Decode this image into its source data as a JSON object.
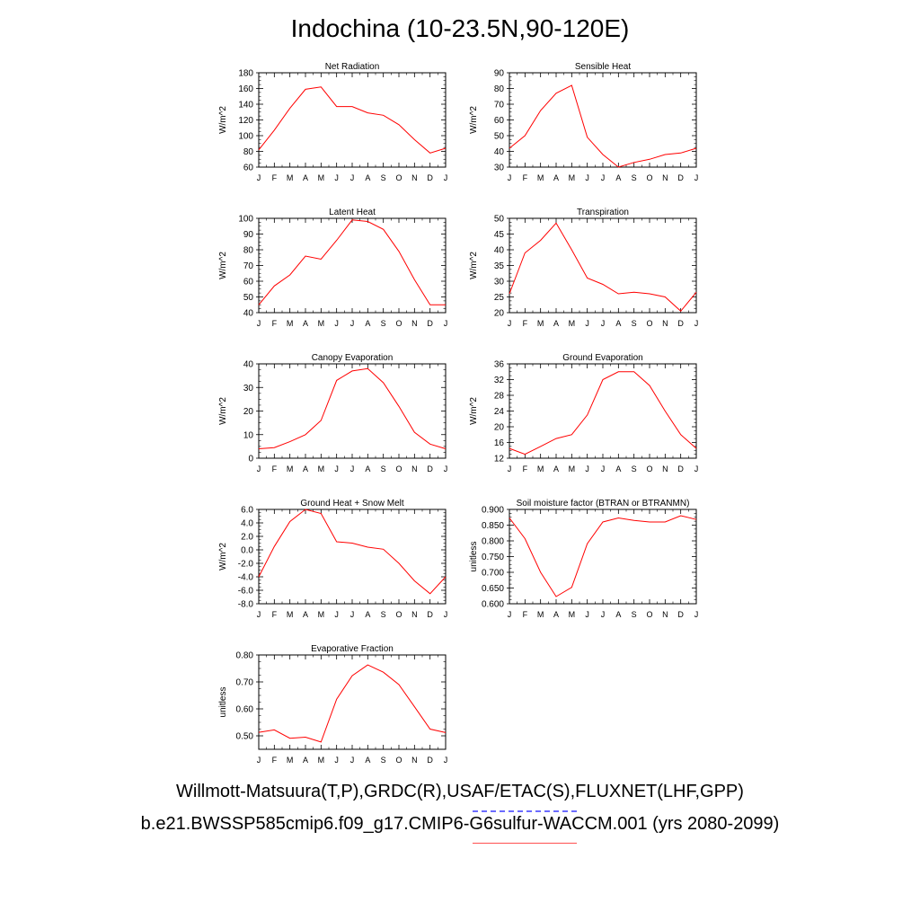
{
  "title": "Indochina (10-23.5N,90-120E)",
  "footer": {
    "obs_sources": "Willmott-Matsuura(T,P),GRDC(R),USAF/ETAC(S),FLUXNET(LHF,GPP)",
    "case_name": "b.e21.BWSSP585cmip6.f09_g17.CMIP6-G6sulfur-WACCM.001 (yrs 2080-2099)"
  },
  "colors": {
    "line": "#ff0000",
    "obs_dash": "#6b6bff",
    "case_line": "#ff5050"
  },
  "chart_data": [
    {
      "id": "net-radiation",
      "type": "line",
      "title": "Net Radiation",
      "ylabel": "W/m^2",
      "categories": [
        "J",
        "F",
        "M",
        "A",
        "M",
        "J",
        "J",
        "A",
        "S",
        "O",
        "N",
        "D",
        "J"
      ],
      "values": [
        82,
        107,
        135,
        159,
        162,
        137,
        137,
        129,
        126,
        114,
        95,
        78,
        84
      ],
      "ylim": [
        60,
        180
      ],
      "yticks": [
        60,
        80,
        100,
        120,
        140,
        160,
        180
      ],
      "yticklabels": [
        "60",
        "80",
        "100",
        "120",
        "140",
        "160",
        "180"
      ]
    },
    {
      "id": "sensible-heat",
      "type": "line",
      "title": "Sensible Heat",
      "ylabel": "W/m^2",
      "categories": [
        "J",
        "F",
        "M",
        "A",
        "M",
        "J",
        "J",
        "A",
        "S",
        "O",
        "N",
        "D",
        "J"
      ],
      "values": [
        42,
        50,
        66,
        77,
        82,
        49,
        38,
        30,
        33,
        35,
        38,
        39,
        42
      ],
      "ylim": [
        30,
        90
      ],
      "yticks": [
        30,
        40,
        50,
        60,
        70,
        80,
        90
      ],
      "yticklabels": [
        "30",
        "40",
        "50",
        "60",
        "70",
        "80",
        "90"
      ]
    },
    {
      "id": "latent-heat",
      "type": "line",
      "title": "Latent Heat",
      "ylabel": "W/m^2",
      "categories": [
        "J",
        "F",
        "M",
        "A",
        "M",
        "J",
        "J",
        "A",
        "S",
        "O",
        "N",
        "D",
        "J"
      ],
      "values": [
        45,
        57,
        64,
        76,
        74,
        86,
        99,
        98,
        93,
        79,
        61,
        45,
        45
      ],
      "ylim": [
        40,
        100
      ],
      "yticks": [
        40,
        50,
        60,
        70,
        80,
        90,
        100
      ],
      "yticklabels": [
        "40",
        "50",
        "60",
        "70",
        "80",
        "90",
        "100"
      ]
    },
    {
      "id": "transpiration",
      "type": "line",
      "title": "Transpiration",
      "ylabel": "W/m^2",
      "categories": [
        "J",
        "F",
        "M",
        "A",
        "M",
        "J",
        "J",
        "A",
        "S",
        "O",
        "N",
        "D",
        "J"
      ],
      "values": [
        26,
        39,
        43,
        48.5,
        40,
        31,
        29,
        26,
        26.5,
        26,
        25,
        20.5,
        26.5
      ],
      "ylim": [
        20,
        50
      ],
      "yticks": [
        20,
        25,
        30,
        35,
        40,
        45,
        50
      ],
      "yticklabels": [
        "20",
        "25",
        "30",
        "35",
        "40",
        "45",
        "50"
      ]
    },
    {
      "id": "canopy-evaporation",
      "type": "line",
      "title": "Canopy Evaporation",
      "ylabel": "W/m^2",
      "categories": [
        "J",
        "F",
        "M",
        "A",
        "M",
        "J",
        "J",
        "A",
        "S",
        "O",
        "N",
        "D",
        "J"
      ],
      "values": [
        4,
        4.5,
        7,
        10,
        16,
        33,
        37,
        38,
        32,
        22,
        11,
        6,
        4
      ],
      "ylim": [
        0,
        40
      ],
      "yticks": [
        0,
        10,
        20,
        30,
        40
      ],
      "yticklabels": [
        "0",
        "10",
        "20",
        "30",
        "40"
      ]
    },
    {
      "id": "ground-evaporation",
      "type": "line",
      "title": "Ground Evaporation",
      "ylabel": "W/m^2",
      "categories": [
        "J",
        "F",
        "M",
        "A",
        "M",
        "J",
        "J",
        "A",
        "S",
        "O",
        "N",
        "D",
        "J"
      ],
      "values": [
        14.5,
        13,
        15,
        17,
        18,
        23,
        32,
        34,
        34,
        30.5,
        24,
        18,
        14.5
      ],
      "ylim": [
        12,
        36
      ],
      "yticks": [
        12,
        16,
        20,
        24,
        28,
        32,
        36
      ],
      "yticklabels": [
        "12",
        "16",
        "20",
        "24",
        "28",
        "32",
        "36"
      ]
    },
    {
      "id": "ground-heat-snow-melt",
      "type": "line",
      "title": "Ground Heat + Snow Melt",
      "ylabel": "W/m^2",
      "categories": [
        "J",
        "F",
        "M",
        "A",
        "M",
        "J",
        "J",
        "A",
        "S",
        "O",
        "N",
        "D",
        "J"
      ],
      "values": [
        -4,
        0.5,
        4.2,
        6,
        5.4,
        1.2,
        1,
        0.4,
        0.1,
        -2,
        -4.6,
        -6.5,
        -4
      ],
      "ylim": [
        -8,
        6
      ],
      "yticks": [
        -8,
        -6,
        -4,
        -2,
        0,
        2,
        4,
        6
      ],
      "yticklabels": [
        "-8.0",
        "-6.0",
        "-4.0",
        "-2.0",
        "0.0",
        "2.0",
        "4.0",
        "6.0"
      ]
    },
    {
      "id": "soil-moisture-factor",
      "type": "line",
      "title": "Soil moisture factor (BTRAN or BTRANMN)",
      "ylabel": "unitless",
      "categories": [
        "J",
        "F",
        "M",
        "A",
        "M",
        "J",
        "J",
        "A",
        "S",
        "O",
        "N",
        "D",
        "J"
      ],
      "values": [
        0.873,
        0.807,
        0.7,
        0.623,
        0.652,
        0.791,
        0.86,
        0.873,
        0.865,
        0.86,
        0.86,
        0.88,
        0.868
      ],
      "ylim": [
        0.6,
        0.9
      ],
      "yticks": [
        0.6,
        0.65,
        0.7,
        0.75,
        0.8,
        0.85,
        0.9
      ],
      "yticklabels": [
        "0.600",
        "0.650",
        "0.700",
        "0.750",
        "0.800",
        "0.850",
        "0.900"
      ]
    },
    {
      "id": "evaporative-fraction",
      "type": "line",
      "title": "Evaporative Fraction",
      "ylabel": "unitless",
      "categories": [
        "J",
        "F",
        "M",
        "A",
        "M",
        "J",
        "J",
        "A",
        "S",
        "O",
        "N",
        "D",
        "J"
      ],
      "values": [
        0.513,
        0.522,
        0.491,
        0.495,
        0.477,
        0.636,
        0.723,
        0.763,
        0.736,
        0.69,
        0.608,
        0.525,
        0.512
      ],
      "ylim": [
        0.45,
        0.8
      ],
      "yticks": [
        0.5,
        0.6,
        0.7,
        0.8
      ],
      "yticklabels": [
        "0.50",
        "0.60",
        "0.70",
        "0.80"
      ]
    }
  ]
}
